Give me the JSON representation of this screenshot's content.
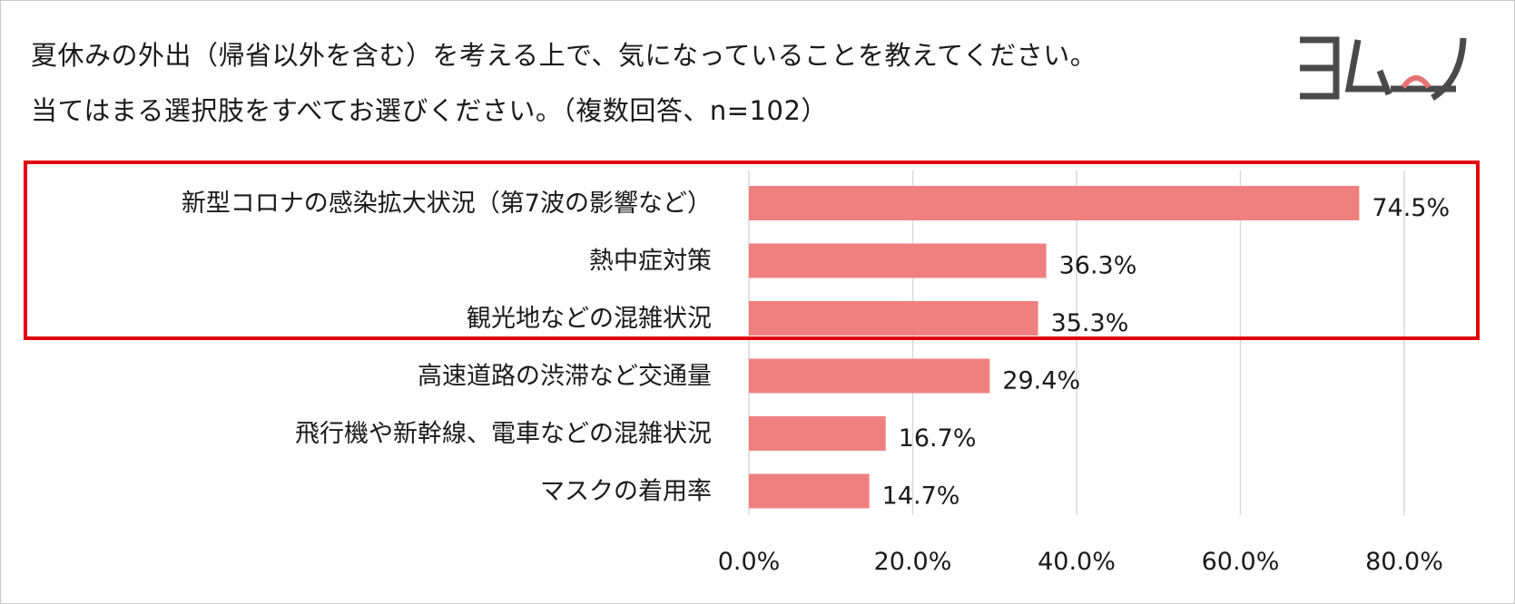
{
  "title": {
    "line1": "夏休みの外出（帰省以外を含む）を考える上で、気になっていることを教えてください。",
    "line2": "当てはまる選択肢をすべてお選びください。（複数回答、n=102）"
  },
  "logo": {
    "text": "ヨムーノ",
    "icon": "yomuno-logo"
  },
  "colors": {
    "bar": "#f08080",
    "highlight": "#e3000f",
    "grid": "#d9d9d9",
    "logo": "#4a4a4a",
    "logo_accent": "#e57373"
  },
  "chart_data": {
    "type": "bar",
    "orientation": "horizontal",
    "title": "夏休みの外出（帰省以外を含む）を考える上で、気になっていることを教えてください。当てはまる選択肢をすべてお選びください。（複数回答、n=102）",
    "categories": [
      "新型コロナの感染拡大状況（第7波の影響など）",
      "熱中症対策",
      "観光地などの混雑状況",
      "高速道路の渋滞など交通量",
      "飛行機や新幹線、電車などの混雑状況",
      "マスクの着用率"
    ],
    "values": [
      74.5,
      36.3,
      35.3,
      29.4,
      16.7,
      14.7
    ],
    "value_labels": [
      "74.5%",
      "36.3%",
      "35.3%",
      "29.4%",
      "16.7%",
      "14.7%"
    ],
    "xlim": [
      0,
      80
    ],
    "xticks": [
      0,
      20,
      40,
      60,
      80
    ],
    "xtick_labels": [
      "0.0%",
      "20.0%",
      "40.0%",
      "60.0%",
      "80.0%"
    ],
    "grid": true,
    "highlighted_categories": [
      0,
      1,
      2
    ]
  }
}
